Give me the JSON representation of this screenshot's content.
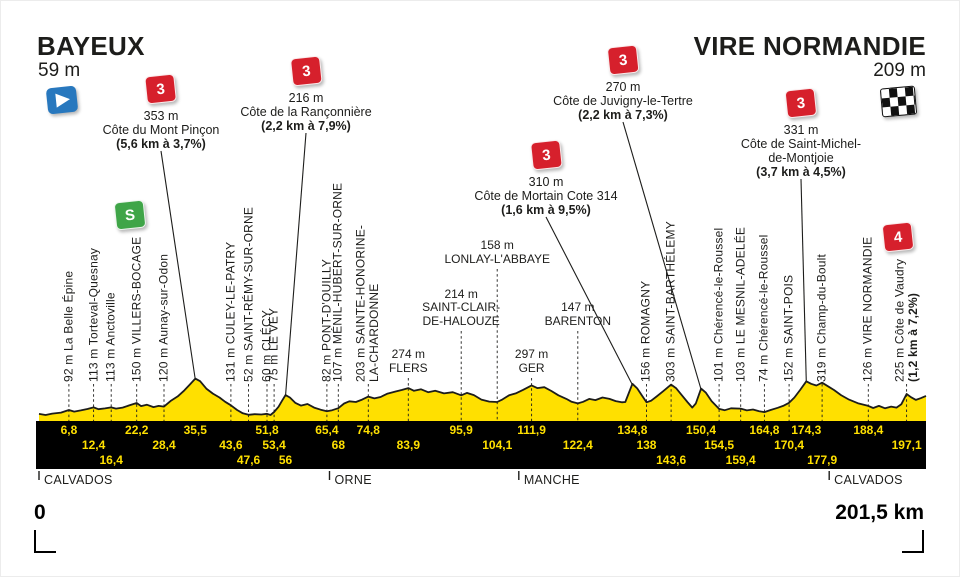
{
  "header": {
    "start": {
      "name": "BAYEUX",
      "elevation": "59 m"
    },
    "finish": {
      "name": "VIRE NORMANDIE",
      "elevation": "209 m"
    }
  },
  "footer": {
    "start_label": "0",
    "finish_label": "201,5 km",
    "regions": [
      {
        "name": "CALVADOS",
        "from_km": 0
      },
      {
        "name": "ORNE",
        "from_km": 66
      },
      {
        "name": "MANCHE",
        "from_km": 109
      },
      {
        "name": "CALVADOS",
        "from_km": 179.5
      }
    ]
  },
  "colors": {
    "profile_fill": "#FFE000",
    "km_text": "#FFE000",
    "climb_flag": "#D6202C",
    "sprint_flag": "#3FA548",
    "start_flag": "#2878BE",
    "bar": "#000000",
    "ink": "#1D1D1B"
  },
  "chart_data": {
    "type": "area",
    "x_label": "km",
    "y_label": "m",
    "x_range": [
      0,
      201.5
    ],
    "total_distance_km": 201.5,
    "profile": [
      [
        0,
        59
      ],
      [
        1.5,
        50
      ],
      [
        3,
        62
      ],
      [
        5,
        70
      ],
      [
        6.8,
        92
      ],
      [
        8,
        78
      ],
      [
        9.5,
        88
      ],
      [
        11,
        100
      ],
      [
        12.4,
        113
      ],
      [
        13.5,
        98
      ],
      [
        15,
        105
      ],
      [
        16.4,
        113
      ],
      [
        17.5,
        103
      ],
      [
        19,
        112
      ],
      [
        20.5,
        130
      ],
      [
        22.2,
        150
      ],
      [
        23.2,
        124
      ],
      [
        24.5,
        136
      ],
      [
        26,
        116
      ],
      [
        27.2,
        126
      ],
      [
        28.4,
        120
      ],
      [
        30,
        170
      ],
      [
        31.5,
        205
      ],
      [
        33,
        255
      ],
      [
        34.3,
        305
      ],
      [
        35.5,
        353
      ],
      [
        36.6,
        332
      ],
      [
        38,
        270
      ],
      [
        39.5,
        228
      ],
      [
        41,
        196
      ],
      [
        42.3,
        160
      ],
      [
        43.6,
        131
      ],
      [
        45,
        92
      ],
      [
        46.3,
        64
      ],
      [
        47.6,
        52
      ],
      [
        49,
        57
      ],
      [
        50.5,
        54
      ],
      [
        51.8,
        60
      ],
      [
        52.6,
        50
      ],
      [
        53.4,
        75
      ],
      [
        54.4,
        118
      ],
      [
        55.2,
        168
      ],
      [
        56,
        216
      ],
      [
        57,
        196
      ],
      [
        58.2,
        152
      ],
      [
        59.5,
        128
      ],
      [
        61,
        142
      ],
      [
        62.5,
        112
      ],
      [
        64,
        94
      ],
      [
        65.4,
        82
      ],
      [
        66.6,
        90
      ],
      [
        68,
        107
      ],
      [
        69.3,
        146
      ],
      [
        70.5,
        164
      ],
      [
        72,
        158
      ],
      [
        73.4,
        178
      ],
      [
        74.8,
        203
      ],
      [
        76.2,
        188
      ],
      [
        77.6,
        200
      ],
      [
        79.2,
        228
      ],
      [
        81,
        246
      ],
      [
        82.4,
        258
      ],
      [
        83.9,
        274
      ],
      [
        85.2,
        252
      ],
      [
        86.8,
        264
      ],
      [
        88.4,
        240
      ],
      [
        90,
        252
      ],
      [
        92,
        230
      ],
      [
        94,
        240
      ],
      [
        95.9,
        214
      ],
      [
        97.2,
        234
      ],
      [
        98.8,
        216
      ],
      [
        100.5,
        178
      ],
      [
        102.3,
        162
      ],
      [
        104.1,
        158
      ],
      [
        105.3,
        180
      ],
      [
        106.8,
        214
      ],
      [
        108.3,
        230
      ],
      [
        110,
        260
      ],
      [
        111.9,
        297
      ],
      [
        113.2,
        274
      ],
      [
        114.8,
        282
      ],
      [
        116.4,
        250
      ],
      [
        118,
        214
      ],
      [
        119.8,
        184
      ],
      [
        121,
        160
      ],
      [
        122.4,
        147
      ],
      [
        123.6,
        160
      ],
      [
        125,
        184
      ],
      [
        126.4,
        174
      ],
      [
        128,
        196
      ],
      [
        129.6,
        184
      ],
      [
        131,
        166
      ],
      [
        132.4,
        156
      ],
      [
        133.2,
        158
      ],
      [
        134.8,
        310
      ],
      [
        135.9,
        272
      ],
      [
        137,
        210
      ],
      [
        138,
        156
      ],
      [
        139.1,
        170
      ],
      [
        140.3,
        204
      ],
      [
        141.8,
        248
      ],
      [
        143.6,
        303
      ],
      [
        144.7,
        274
      ],
      [
        146,
        216
      ],
      [
        147.3,
        158
      ],
      [
        148.4,
        112
      ],
      [
        149.2,
        146
      ],
      [
        150.4,
        270
      ],
      [
        151.5,
        236
      ],
      [
        152.8,
        166
      ],
      [
        154.5,
        101
      ],
      [
        155.8,
        90
      ],
      [
        157.2,
        106
      ],
      [
        159.4,
        103
      ],
      [
        160.8,
        88
      ],
      [
        162.2,
        96
      ],
      [
        163.6,
        82
      ],
      [
        164.8,
        74
      ],
      [
        166.2,
        92
      ],
      [
        167.8,
        110
      ],
      [
        169.2,
        128
      ],
      [
        170.4,
        152
      ],
      [
        171.6,
        196
      ],
      [
        172.9,
        258
      ],
      [
        174.3,
        331
      ],
      [
        175.4,
        310
      ],
      [
        176.6,
        296
      ],
      [
        177.9,
        319
      ],
      [
        179.2,
        290
      ],
      [
        180.6,
        258
      ],
      [
        182.2,
        216
      ],
      [
        184,
        178
      ],
      [
        186,
        148
      ],
      [
        188.4,
        126
      ],
      [
        189.5,
        108
      ],
      [
        190.8,
        126
      ],
      [
        192.2,
        106
      ],
      [
        193.6,
        120
      ],
      [
        194.8,
        112
      ],
      [
        195.9,
        139
      ],
      [
        197.1,
        225
      ],
      [
        198.1,
        198
      ],
      [
        199.2,
        176
      ],
      [
        200.3,
        190
      ],
      [
        201.5,
        209
      ]
    ],
    "waypoints": [
      {
        "km": 6.8,
        "elev": 92,
        "name": "La Belle Épine",
        "o": "v"
      },
      {
        "km": 12.4,
        "elev": 113,
        "name": "Torteval-Quesnay",
        "o": "v"
      },
      {
        "km": 16.4,
        "elev": 113,
        "name": "Anctoville",
        "o": "v"
      },
      {
        "km": 22.2,
        "elev": 150,
        "name": "VILLERS-BOCAGE",
        "o": "v"
      },
      {
        "km": 28.4,
        "elev": 120,
        "name": "Aunay-sur-Odon",
        "o": "v"
      },
      {
        "km": 43.6,
        "elev": 131,
        "name": "CULEY-LE-PATRY",
        "o": "v"
      },
      {
        "km": 47.6,
        "elev": 52,
        "name": "SAINT-RÉMY-SUR-ORNE",
        "o": "v"
      },
      {
        "km": 51.8,
        "elev": 60,
        "name": "CLÉCY",
        "o": "v"
      },
      {
        "km": 53.4,
        "elev": 75,
        "name": "LE VEY",
        "o": "v"
      },
      {
        "km": 65.4,
        "elev": 82,
        "name": "PONT-D'OUILLY",
        "o": "v"
      },
      {
        "km": 68,
        "elev": 107,
        "name": "MÉNIL-HUBERT-SUR-ORNE",
        "o": "v"
      },
      {
        "km": 74.8,
        "elev": 203,
        "name": "SAINTE-HONORINE-LA-CHARDONNE",
        "o": "v",
        "lines": [
          "203 m SAINTE-HONORINE-",
          "LA-CHARDONNE"
        ]
      },
      {
        "km": 83.9,
        "elev": 274,
        "name": "FLERS",
        "o": "h",
        "tier": 1,
        "lines": [
          "274 m",
          "FLERS"
        ]
      },
      {
        "km": 95.9,
        "elev": 214,
        "name": "SAINT-CLAIR-DE-HALOUZE",
        "o": "h",
        "tier": 2,
        "lines": [
          "214 m",
          "SAINT-CLAIR-",
          "DE-HALOUZE"
        ]
      },
      {
        "km": 104.1,
        "elev": 158,
        "name": "LONLAY-L'ABBAYE",
        "o": "h",
        "tier": 3,
        "lines": [
          "158 m",
          "LONLAY-L'ABBAYE"
        ]
      },
      {
        "km": 111.9,
        "elev": 297,
        "name": "GER",
        "o": "h",
        "tier": 1,
        "lines": [
          "297 m",
          "GER"
        ]
      },
      {
        "km": 122.4,
        "elev": 147,
        "name": "BARENTON",
        "o": "h",
        "tier": 2,
        "lines": [
          "147 m",
          "BARENTON"
        ]
      },
      {
        "km": 138,
        "elev": 156,
        "name": "ROMAGNY",
        "o": "v"
      },
      {
        "km": 143.6,
        "elev": 303,
        "name": "SAINT-BARTHÉLEMY",
        "o": "v"
      },
      {
        "km": 154.5,
        "elev": 101,
        "name": "Chérencé-le-Roussel",
        "o": "v"
      },
      {
        "km": 159.4,
        "elev": 103,
        "name": "LE MESNIL-ADELÉE",
        "o": "v"
      },
      {
        "km": 164.8,
        "elev": 74,
        "name": "Chérencé-le-Roussel",
        "o": "v"
      },
      {
        "km": 170.4,
        "elev": 152,
        "name": "SAINT-POIS",
        "o": "v"
      },
      {
        "km": 177.9,
        "elev": 319,
        "name": "Champ-du-Boult",
        "o": "v"
      },
      {
        "km": 188.4,
        "elev": 126,
        "name": "VIRE NORMANDIE",
        "o": "v"
      },
      {
        "km": 197.1,
        "elev": 225,
        "name": "Côte de Vaudry",
        "o": "v",
        "lines": [
          "225 m Côte de Vaudry",
          "(1,2 km à 7,2%)"
        ],
        "bold_line": 1
      }
    ],
    "climbs": [
      {
        "km": 35.5,
        "category": "3",
        "elev_m": 353,
        "elevation": "353 m",
        "name_lines": [
          "Côte du Mont Pinçon"
        ],
        "gradient": "(5,6 km à 3,7%)"
      },
      {
        "km": 56,
        "category": "3",
        "elev_m": 216,
        "elevation": "216 m",
        "name_lines": [
          "Côte de la Rançonnière"
        ],
        "gradient": "(2,2 km à 7,9%)"
      },
      {
        "km": 134.8,
        "category": "3",
        "elev_m": 310,
        "elevation": "310 m",
        "name_lines": [
          "Côte de Mortain Cote 314"
        ],
        "gradient": "(1,6 km à 9,5%)"
      },
      {
        "km": 150.4,
        "category": "3",
        "elev_m": 270,
        "elevation": "270 m",
        "name_lines": [
          "Côte de Juvigny-le-Tertre"
        ],
        "gradient": "(2,2 km à 7,3%)"
      },
      {
        "km": 174.3,
        "category": "3",
        "elev_m": 331,
        "elevation": "331 m",
        "name_lines": [
          "Côte de Saint-Michel-",
          "de-Montjoie"
        ],
        "gradient": "(3,7 km à 4,5%)"
      },
      {
        "km": 197.1,
        "category": "4",
        "elev_m": 225,
        "flag_only": true
      }
    ],
    "sprint": {
      "km": 22.2,
      "name": "VILLERS-BOCAGE"
    },
    "km_marks": [
      {
        "label": "6,8",
        "row": 0
      },
      {
        "label": "12,4",
        "row": 1
      },
      {
        "label": "16,4",
        "row": 2
      },
      {
        "label": "22,2",
        "row": 0
      },
      {
        "label": "28,4",
        "row": 1
      },
      {
        "label": "35,5",
        "row": 0
      },
      {
        "label": "43,6",
        "row": 1
      },
      {
        "label": "47,6",
        "row": 2
      },
      {
        "label": "51,8",
        "row": 0
      },
      {
        "label": "53,4",
        "row": 1
      },
      {
        "label": "56",
        "row": 2
      },
      {
        "label": "65,4",
        "row": 0
      },
      {
        "label": "68",
        "row": 1
      },
      {
        "label": "74,8",
        "row": 0
      },
      {
        "label": "83,9",
        "row": 1
      },
      {
        "label": "95,9",
        "row": 0
      },
      {
        "label": "104,1",
        "row": 1
      },
      {
        "label": "111,9",
        "row": 0
      },
      {
        "label": "122,4",
        "row": 1
      },
      {
        "label": "134,8",
        "row": 0
      },
      {
        "label": "138",
        "row": 1
      },
      {
        "label": "143,6",
        "row": 2
      },
      {
        "label": "150,4",
        "row": 0
      },
      {
        "label": "154,5",
        "row": 1
      },
      {
        "label": "159,4",
        "row": 2
      },
      {
        "label": "164,8",
        "row": 0
      },
      {
        "label": "170,4",
        "row": 1
      },
      {
        "label": "174,3",
        "row": 0
      },
      {
        "label": "177,9",
        "row": 2
      },
      {
        "label": "188,4",
        "row": 0
      },
      {
        "label": "197,1",
        "row": 1
      }
    ]
  }
}
